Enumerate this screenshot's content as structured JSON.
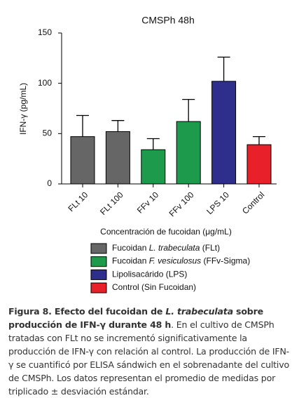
{
  "chart_data": {
    "type": "bar",
    "title": "CMSPh 48h",
    "y_label": "IFN-γ (pg/mL)",
    "x_label": "Concentración de fucoidan (μg/mL)",
    "categories": [
      "FLt 10",
      "FLt 100",
      "FFv 10",
      "FFv 100",
      "LPS 10",
      "Control"
    ],
    "values": [
      47,
      52,
      34,
      62,
      102,
      39
    ],
    "errors": [
      21,
      11,
      11,
      22,
      24,
      8
    ],
    "colors": [
      "#666666",
      "#666666",
      "#1d9a4c",
      "#1d9a4c",
      "#2e2e8c",
      "#e8202a"
    ],
    "ylim": [
      0,
      150
    ],
    "yticks": [
      0,
      50,
      100,
      150
    ],
    "legend": [
      {
        "color": "#666666",
        "label": [
          "Fucoidan ",
          "L. trabeculata",
          " (FLt)"
        ]
      },
      {
        "color": "#1d9a4c",
        "label": [
          "Fucoidan ",
          "F. vesiculosus",
          " (FFv-Sigma)"
        ]
      },
      {
        "color": "#2e2e8c",
        "label": [
          "Lipolisacárido (LPS)"
        ]
      },
      {
        "color": "#e8202a",
        "label": [
          "Control (Sin Fucoidan)"
        ]
      }
    ]
  },
  "caption": [
    "Figura 8. Efecto del fucoidan de ",
    "L. trabeculata",
    " sobre producción de IFN-γ durante 48 h",
    ". En el cultivo de CMSPh tratadas con FLt no se incrementó significativamente la producción de IFN-γ con relación al control. La producción de IFN-γ se cuantificó por ELISA sándwich en el sobrenadante del cultivo de CMSPh. Los datos representan el promedio de medidas por triplicado ± desviación estándar."
  ]
}
